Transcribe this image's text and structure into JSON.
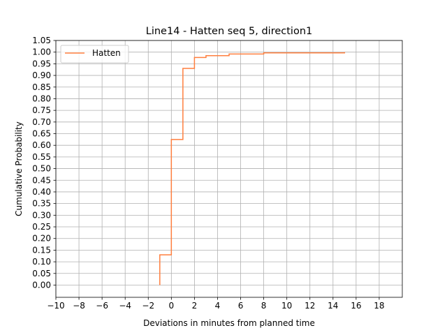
{
  "chart_data": {
    "type": "line",
    "step": "post",
    "title": "Line14 - Hatten seq 5, direction1",
    "xlabel": "Deviations in minutes from planned time",
    "ylabel": "Cumulative Probability",
    "xlim": [
      -10,
      20
    ],
    "ylim": [
      -0.0525,
      1.05
    ],
    "xticks": [
      -10,
      -8,
      -6,
      -4,
      -2,
      0,
      2,
      4,
      6,
      8,
      10,
      12,
      14,
      16,
      18
    ],
    "xtick_labels": [
      "−10",
      "−8",
      "−6",
      "−4",
      "−2",
      "0",
      "2",
      "4",
      "6",
      "8",
      "10",
      "12",
      "14",
      "16",
      "18"
    ],
    "yticks": [
      0,
      0.05,
      0.1,
      0.15,
      0.2,
      0.25,
      0.3,
      0.35,
      0.4,
      0.45,
      0.5,
      0.55,
      0.6,
      0.65,
      0.7,
      0.75,
      0.8,
      0.85,
      0.9,
      0.95,
      1.0,
      1.05
    ],
    "ytick_labels": [
      "0.00",
      "0.05",
      "0.10",
      "0.15",
      "0.20",
      "0.25",
      "0.30",
      "0.35",
      "0.40",
      "0.45",
      "0.50",
      "0.55",
      "0.60",
      "0.65",
      "0.70",
      "0.75",
      "0.80",
      "0.85",
      "0.90",
      "0.95",
      "1.00",
      "1.05"
    ],
    "grid": true,
    "legend_position": "top-left",
    "series": [
      {
        "name": "Hatten",
        "color": "#ff7f3f",
        "x": [
          -1,
          -1,
          0,
          1,
          2,
          3,
          5,
          8,
          15
        ],
        "y": [
          0.0,
          0.13,
          0.625,
          0.93,
          0.977,
          0.985,
          0.992,
          0.997,
          1.0
        ]
      }
    ]
  }
}
